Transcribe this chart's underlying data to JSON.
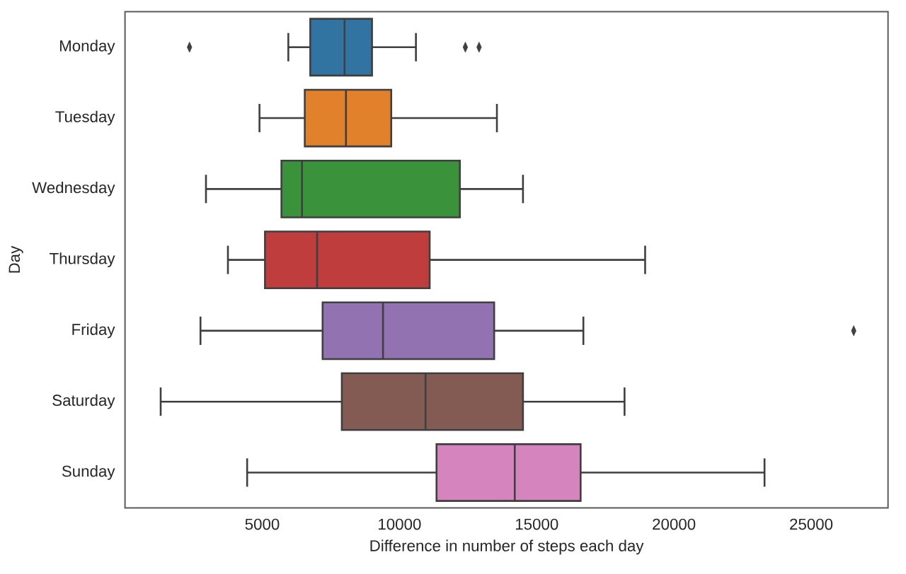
{
  "chart_data": {
    "type": "box",
    "orientation": "horizontal",
    "xlabel": "Difference in number of steps each day",
    "ylabel": "Day",
    "categories": [
      "Monday",
      "Tuesday",
      "Wednesday",
      "Thursday",
      "Friday",
      "Saturday",
      "Sunday"
    ],
    "boxes": [
      {
        "low": 5950,
        "q1": 6750,
        "median": 8000,
        "q3": 9000,
        "high": 10600,
        "outliers": [
          2350,
          12400,
          12900
        ]
      },
      {
        "low": 4900,
        "q1": 6550,
        "median": 8050,
        "q3": 9700,
        "high": 13550
      },
      {
        "low": 2950,
        "q1": 5700,
        "median": 6450,
        "q3": 12200,
        "high": 14500
      },
      {
        "low": 3750,
        "q1": 5100,
        "median": 7000,
        "q3": 11100,
        "high": 18950
      },
      {
        "low": 2750,
        "q1": 7200,
        "median": 9400,
        "q3": 13450,
        "high": 16700,
        "outliers": [
          26550
        ]
      },
      {
        "low": 1300,
        "q1": 7900,
        "median": 10950,
        "q3": 14500,
        "high": 18200
      },
      {
        "low": 4450,
        "q1": 11350,
        "median": 14200,
        "q3": 16600,
        "high": 23300
      }
    ],
    "colors": [
      "#3274a1",
      "#e1812c",
      "#3a923a",
      "#c03d3e",
      "#9372b2",
      "#845b53",
      "#d684bd"
    ],
    "xlim": [
      0,
      27800
    ],
    "xticks": [
      5000,
      10000,
      15000,
      20000,
      25000
    ],
    "marker": "diamond"
  }
}
